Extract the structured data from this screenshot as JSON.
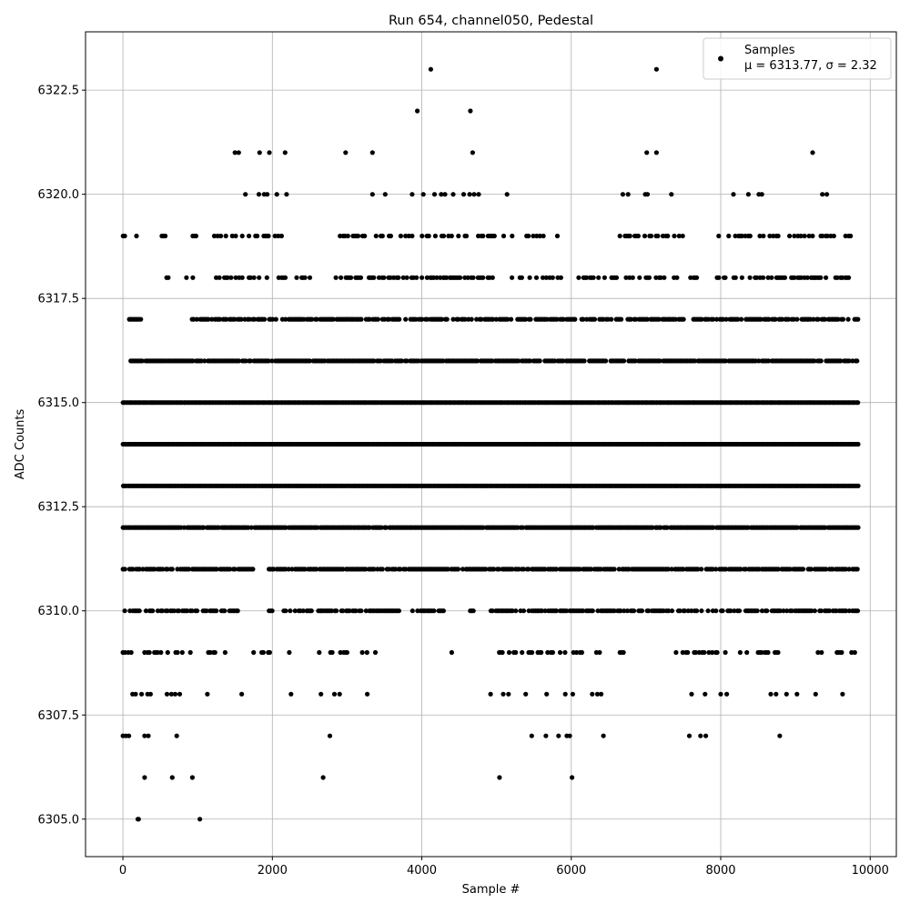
{
  "chart_data": {
    "type": "scatter",
    "title": "Run 654, channel050, Pedestal",
    "xlabel": "Sample #",
    "ylabel": "ADC Counts",
    "xlim": [
      -500,
      10350
    ],
    "ylim": [
      6304.1,
      6323.9
    ],
    "x_ticks": [
      0,
      2000,
      4000,
      6000,
      8000,
      10000
    ],
    "x_tick_labels": [
      "0",
      "2000",
      "4000",
      "6000",
      "8000",
      "10000"
    ],
    "y_ticks": [
      6305.0,
      6307.5,
      6310.0,
      6312.5,
      6315.0,
      6317.5,
      6320.0,
      6322.5
    ],
    "y_tick_labels": [
      "6305.0",
      "6307.5",
      "6310.0",
      "6312.5",
      "6315.0",
      "6317.5",
      "6320.0",
      "6322.5"
    ],
    "grid": true,
    "legend": {
      "placement": "upper right",
      "label": "Samples",
      "stats": "μ = 6313.77, σ = 2.32"
    },
    "marker_color": "#000000",
    "series": [
      {
        "name": "Samples",
        "x_range": [
          0,
          9840
        ],
        "mean": 6313.77,
        "std": 2.32,
        "sparse_points": [
          {
            "x": 210,
            "y": 6305
          },
          {
            "x": 1030,
            "y": 6305
          },
          {
            "x": 290,
            "y": 6306
          },
          {
            "x": 660,
            "y": 6306
          },
          {
            "x": 930,
            "y": 6306
          },
          {
            "x": 2680,
            "y": 6306
          },
          {
            "x": 5040,
            "y": 6306
          },
          {
            "x": 6010,
            "y": 6306
          },
          {
            "x": 0,
            "y": 6307
          },
          {
            "x": 40,
            "y": 6307
          },
          {
            "x": 80,
            "y": 6307
          },
          {
            "x": 290,
            "y": 6307
          },
          {
            "x": 340,
            "y": 6307
          },
          {
            "x": 720,
            "y": 6307
          },
          {
            "x": 2770,
            "y": 6307
          },
          {
            "x": 5470,
            "y": 6307
          },
          {
            "x": 5660,
            "y": 6307
          },
          {
            "x": 5830,
            "y": 6307
          },
          {
            "x": 5940,
            "y": 6307
          },
          {
            "x": 5980,
            "y": 6307
          },
          {
            "x": 6430,
            "y": 6307
          },
          {
            "x": 7580,
            "y": 6307
          },
          {
            "x": 7730,
            "y": 6307
          },
          {
            "x": 7800,
            "y": 6307
          },
          {
            "x": 8790,
            "y": 6307
          },
          {
            "x": 4120,
            "y": 6323
          },
          {
            "x": 7140,
            "y": 6323
          },
          {
            "x": 3940,
            "y": 6322
          },
          {
            "x": 4650,
            "y": 6322
          },
          {
            "x": 1500,
            "y": 6321
          },
          {
            "x": 1550,
            "y": 6321
          },
          {
            "x": 1830,
            "y": 6321
          },
          {
            "x": 1960,
            "y": 6321
          },
          {
            "x": 2170,
            "y": 6321
          },
          {
            "x": 2980,
            "y": 6321
          },
          {
            "x": 3340,
            "y": 6321
          },
          {
            "x": 4680,
            "y": 6321
          },
          {
            "x": 7010,
            "y": 6321
          },
          {
            "x": 7140,
            "y": 6321
          },
          {
            "x": 9230,
            "y": 6321
          },
          {
            "x": 1640,
            "y": 6320
          },
          {
            "x": 1820,
            "y": 6320
          },
          {
            "x": 1890,
            "y": 6320
          },
          {
            "x": 1930,
            "y": 6320
          },
          {
            "x": 2060,
            "y": 6320
          },
          {
            "x": 2190,
            "y": 6320
          },
          {
            "x": 3340,
            "y": 6320
          },
          {
            "x": 3510,
            "y": 6320
          },
          {
            "x": 3870,
            "y": 6320
          },
          {
            "x": 4020,
            "y": 6320
          },
          {
            "x": 4170,
            "y": 6320
          },
          {
            "x": 4260,
            "y": 6320
          },
          {
            "x": 4310,
            "y": 6320
          },
          {
            "x": 4420,
            "y": 6320
          },
          {
            "x": 4560,
            "y": 6320
          },
          {
            "x": 4640,
            "y": 6320
          },
          {
            "x": 4700,
            "y": 6320
          },
          {
            "x": 4760,
            "y": 6320
          },
          {
            "x": 5140,
            "y": 6320
          },
          {
            "x": 6690,
            "y": 6320
          },
          {
            "x": 6760,
            "y": 6320
          },
          {
            "x": 6990,
            "y": 6320
          },
          {
            "x": 7020,
            "y": 6320
          },
          {
            "x": 7340,
            "y": 6320
          },
          {
            "x": 8170,
            "y": 6320
          },
          {
            "x": 8370,
            "y": 6320
          },
          {
            "x": 8510,
            "y": 6320
          },
          {
            "x": 8550,
            "y": 6320
          },
          {
            "x": 9360,
            "y": 6320
          },
          {
            "x": 9420,
            "y": 6320
          },
          {
            "x": 200,
            "y": 6305
          },
          {
            "x": 1590,
            "y": 6308
          },
          {
            "x": 1130,
            "y": 6308
          },
          {
            "x": 2250,
            "y": 6308
          },
          {
            "x": 2650,
            "y": 6308
          },
          {
            "x": 2830,
            "y": 6308
          },
          {
            "x": 2900,
            "y": 6308
          },
          {
            "x": 3270,
            "y": 6308
          },
          {
            "x": 4920,
            "y": 6308
          },
          {
            "x": 5090,
            "y": 6308
          },
          {
            "x": 5160,
            "y": 6308
          },
          {
            "x": 5390,
            "y": 6308
          },
          {
            "x": 5670,
            "y": 6308
          },
          {
            "x": 5920,
            "y": 6308
          },
          {
            "x": 6020,
            "y": 6308
          },
          {
            "x": 6280,
            "y": 6308
          },
          {
            "x": 6350,
            "y": 6308
          },
          {
            "x": 6400,
            "y": 6308
          },
          {
            "x": 7610,
            "y": 6308
          },
          {
            "x": 7790,
            "y": 6308
          },
          {
            "x": 8000,
            "y": 6308
          },
          {
            "x": 8080,
            "y": 6308
          },
          {
            "x": 8670,
            "y": 6308
          },
          {
            "x": 8740,
            "y": 6308
          },
          {
            "x": 8880,
            "y": 6308
          },
          {
            "x": 9020,
            "y": 6308
          },
          {
            "x": 9270,
            "y": 6308
          },
          {
            "x": 9630,
            "y": 6308
          },
          {
            "x": 130,
            "y": 6308
          },
          {
            "x": 170,
            "y": 6308
          },
          {
            "x": 250,
            "y": 6308
          },
          {
            "x": 330,
            "y": 6308
          },
          {
            "x": 370,
            "y": 6308
          },
          {
            "x": 590,
            "y": 6308
          },
          {
            "x": 650,
            "y": 6308
          },
          {
            "x": 700,
            "y": 6308
          },
          {
            "x": 760,
            "y": 6308
          }
        ],
        "dense_levels": [
          {
            "y": 6309,
            "density": 0.35,
            "spans": [
              [
                0,
                1000
              ],
              [
                1100,
                1400
              ],
              [
                1700,
                2000
              ],
              [
                2200,
                2350
              ],
              [
                2600,
                3000
              ],
              [
                3200,
                3600
              ],
              [
                4050,
                4100
              ],
              [
                4400,
                4450
              ],
              [
                4900,
                5500
              ],
              [
                5550,
                5750
              ],
              [
                5850,
                6500
              ],
              [
                6650,
                6850
              ],
              [
                7400,
                8400
              ],
              [
                8500,
                8800
              ],
              [
                9300,
                9350
              ],
              [
                9550,
                9840
              ]
            ]
          },
          {
            "y": 6310,
            "density": 0.7,
            "spans": [
              [
                0,
                1000
              ],
              [
                1050,
                1700
              ],
              [
                1950,
                2000
              ],
              [
                2150,
                3200
              ],
              [
                3250,
                3700
              ],
              [
                3850,
                4300
              ],
              [
                4600,
                4700
              ],
              [
                4900,
                9840
              ]
            ]
          },
          {
            "y": 6311,
            "density": 0.85,
            "spans": [
              [
                0,
                1750
              ],
              [
                1950,
                9840
              ]
            ]
          },
          {
            "y": 6312,
            "density": 0.95,
            "spans": [
              [
                0,
                9840
              ]
            ]
          },
          {
            "y": 6313,
            "density": 1.0,
            "spans": [
              [
                0,
                9840
              ]
            ]
          },
          {
            "y": 6314,
            "density": 1.0,
            "spans": [
              [
                0,
                9840
              ]
            ]
          },
          {
            "y": 6315,
            "density": 1.0,
            "spans": [
              [
                0,
                9840
              ]
            ]
          },
          {
            "y": 6316,
            "density": 0.9,
            "spans": [
              [
                100,
                9840
              ]
            ]
          },
          {
            "y": 6317,
            "density": 0.75,
            "spans": [
              [
                80,
                250
              ],
              [
                900,
                9840
              ]
            ]
          },
          {
            "y": 6318,
            "density": 0.45,
            "spans": [
              [
                580,
                620
              ],
              [
                780,
                1020
              ],
              [
                1200,
                2500
              ],
              [
                2850,
                4000
              ],
              [
                4000,
                5000
              ],
              [
                5200,
                5900
              ],
              [
                6050,
                7700
              ],
              [
                7950,
                9750
              ]
            ]
          },
          {
            "y": 6319,
            "density": 0.4,
            "spans": [
              [
                0,
                30
              ],
              [
                180,
                220
              ],
              [
                520,
                600
              ],
              [
                700,
                760
              ],
              [
                930,
                1000
              ],
              [
                1220,
                2250
              ],
              [
                2450,
                2500
              ],
              [
                2900,
                3600
              ],
              [
                3650,
                5000
              ],
              [
                5050,
                5650
              ],
              [
                5700,
                5850
              ],
              [
                6650,
                7500
              ],
              [
                7950,
                9780
              ]
            ]
          }
        ]
      }
    ]
  }
}
